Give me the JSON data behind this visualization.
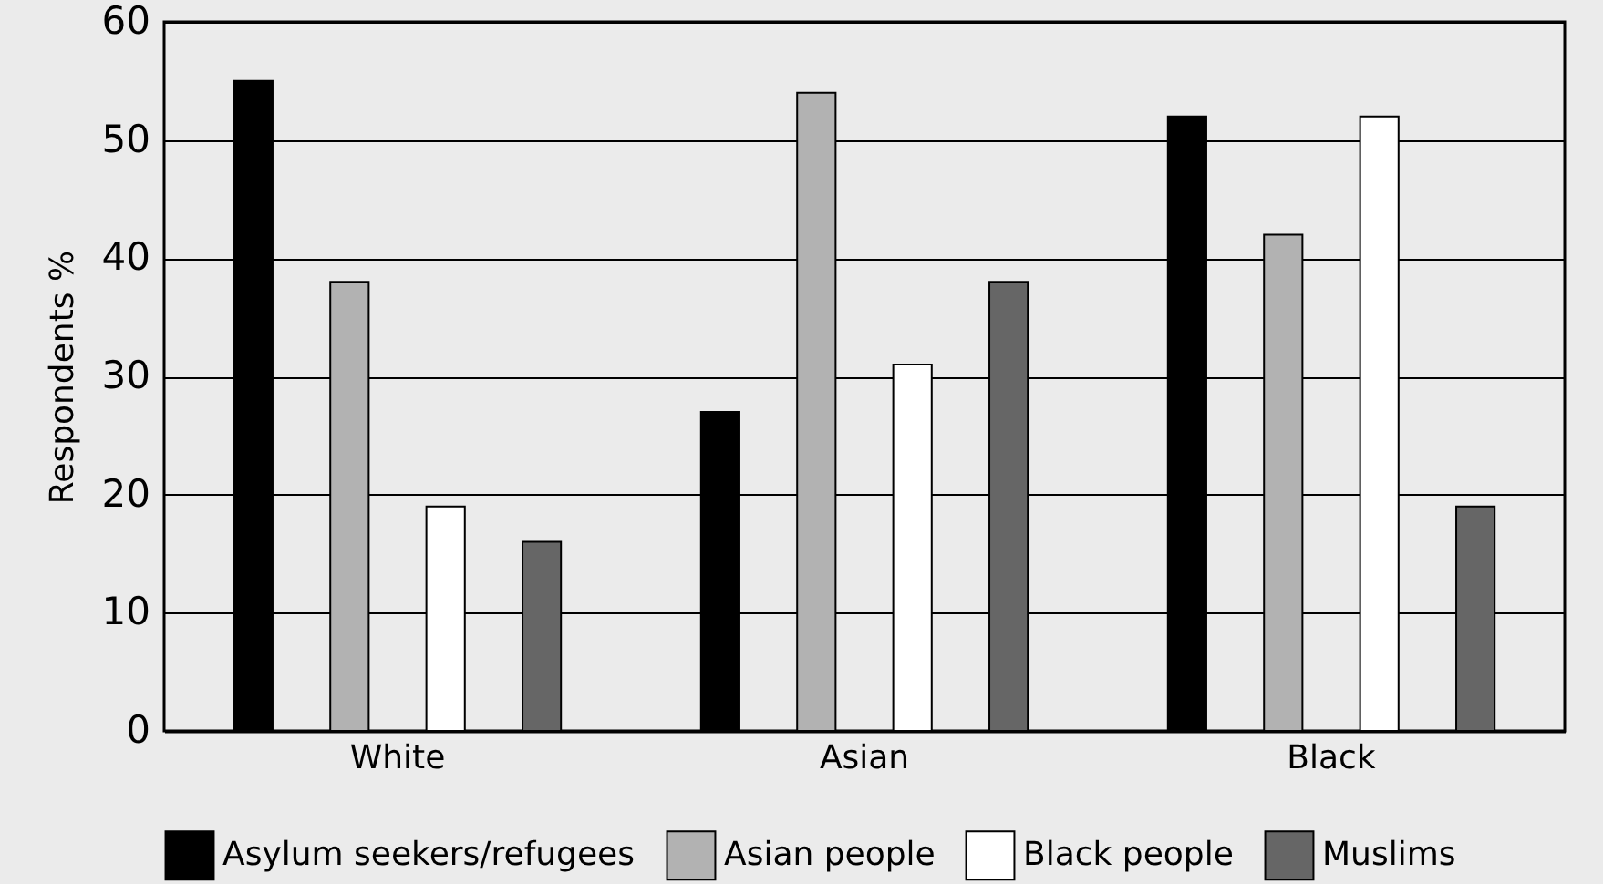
{
  "chart_data": {
    "type": "bar",
    "ylabel": "Respondents %",
    "categories": [
      "White",
      "Asian",
      "Black"
    ],
    "series": [
      {
        "name": "Asylum seekers/refugees",
        "color": "#000000",
        "values": [
          55,
          27,
          52
        ]
      },
      {
        "name": "Asian people",
        "color": "#b2b2b2",
        "values": [
          38,
          54,
          42
        ]
      },
      {
        "name": "Black people",
        "color": "#ffffff",
        "values": [
          19,
          31,
          52
        ]
      },
      {
        "name": "Muslims",
        "color": "#666666",
        "values": [
          16,
          38,
          19
        ]
      }
    ],
    "ylim": [
      0,
      60
    ],
    "yticks": [
      0,
      10,
      20,
      30,
      40,
      50,
      60
    ],
    "grid": "y",
    "legend": "bottom"
  }
}
